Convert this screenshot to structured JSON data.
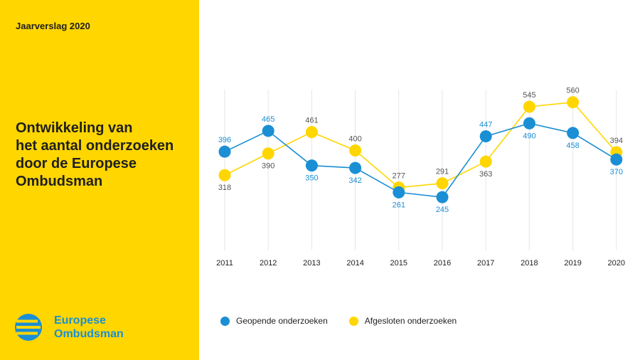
{
  "header": {
    "report_label": "Jaarverslag 2020"
  },
  "title_lines": [
    "Ontwikkeling van",
    "het aantal onderzoeken",
    "door de Europese",
    "Ombudsman"
  ],
  "logo": {
    "line1": "Europese",
    "line2": "Ombudsman",
    "icon": "european-ombudsman-logo-icon"
  },
  "colors": {
    "sidebar": "#ffd600",
    "opened": "#1a8fd4",
    "closed": "#ffd600",
    "gridline": "#e6e6e6"
  },
  "chart_data": {
    "type": "line",
    "title": "Ontwikkeling van het aantal onderzoeken door de Europese Ombudsman",
    "x": [
      "2011",
      "2012",
      "2013",
      "2014",
      "2015",
      "2016",
      "2017",
      "2018",
      "2019",
      "2020"
    ],
    "series": [
      {
        "name": "Geopende onderzoeken",
        "values": [
          396,
          465,
          350,
          342,
          261,
          245,
          447,
          490,
          458,
          370
        ],
        "color": "#1a8fd4"
      },
      {
        "name": "Afgesloten onderzoeken",
        "values": [
          318,
          390,
          461,
          400,
          277,
          291,
          363,
          545,
          560,
          394
        ],
        "color": "#ffd600"
      }
    ],
    "label_positions": {
      "Geopende onderzoeken": [
        "above",
        "above",
        "below",
        "below",
        "below",
        "below",
        "above",
        "below",
        "below",
        "below"
      ],
      "Afgesloten onderzoeken": [
        "below",
        "below",
        "above",
        "above",
        "above",
        "above",
        "below",
        "above",
        "above",
        "above"
      ]
    },
    "ylim": [
      200,
      600
    ],
    "grid": "vertical",
    "legend": "bottom",
    "xlabel": "",
    "ylabel": ""
  }
}
